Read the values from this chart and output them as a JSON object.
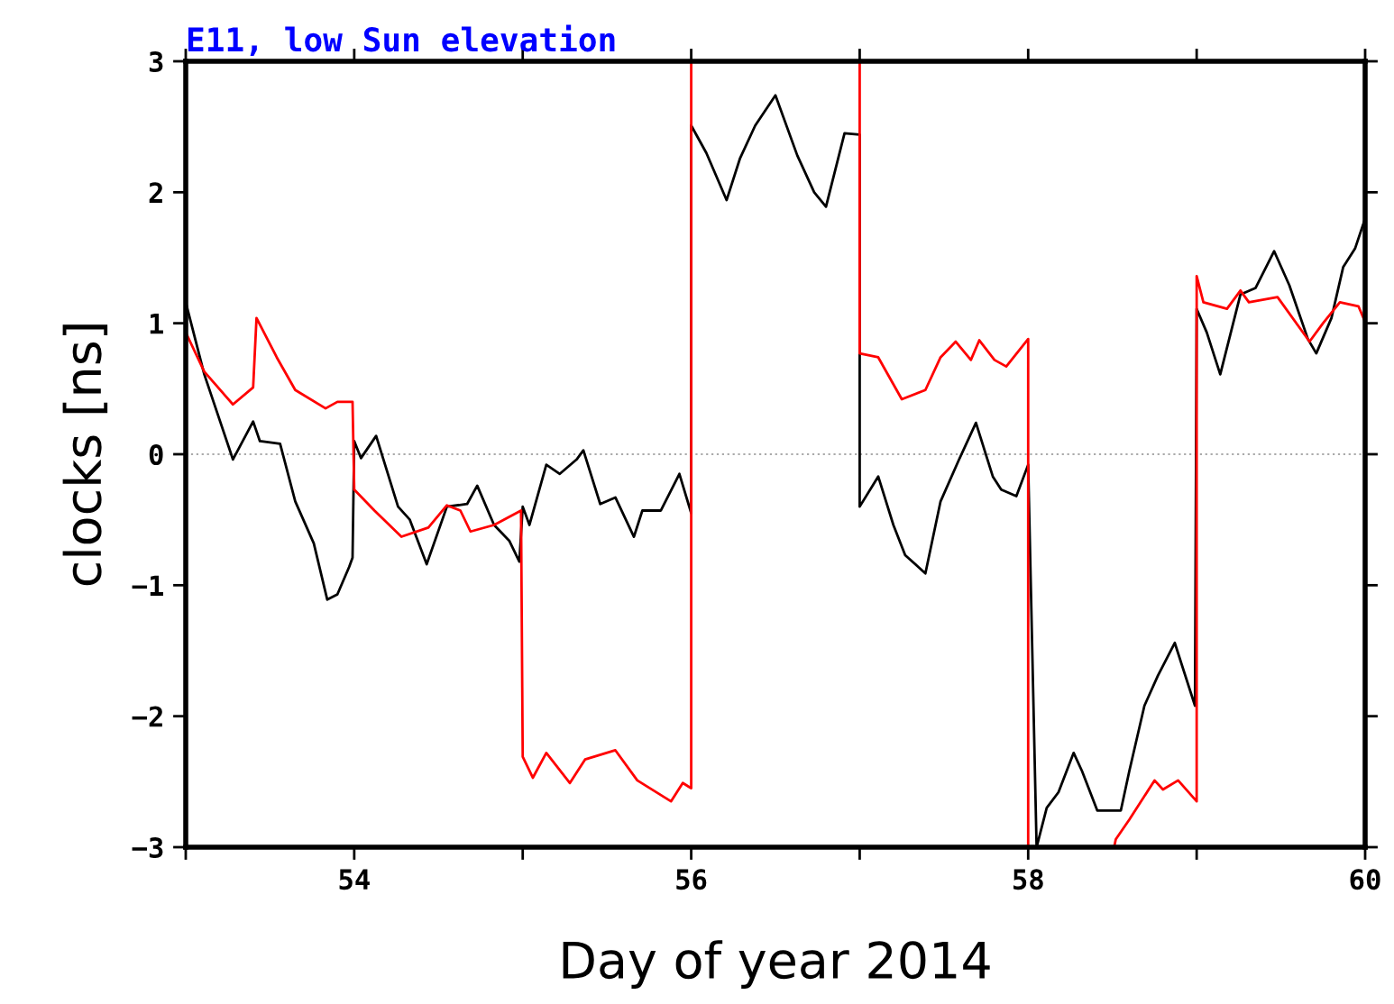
{
  "chart_data": {
    "type": "line",
    "title": "E11, low Sun elevation",
    "xlabel": "Day of year 2014",
    "ylabel": "clocks [ns]",
    "xlim": [
      53,
      60
    ],
    "ylim": [
      -3,
      3
    ],
    "xticks": [
      {
        "value": 53,
        "label": null
      },
      54,
      {
        "value": 55,
        "label": null
      },
      56,
      {
        "value": 57,
        "label": null
      },
      58,
      {
        "value": 59,
        "label": null
      },
      60
    ],
    "yticks": [
      {
        "value": -3,
        "label": "−3"
      },
      {
        "value": -2,
        "label": "−2"
      },
      {
        "value": -1,
        "label": "−1"
      },
      0,
      1,
      2,
      3
    ],
    "grid": false,
    "legend": false,
    "marker": "none",
    "line_style": "solid",
    "ref_lines": [
      {
        "axis": "y",
        "value": 0,
        "color": "#aaaaaa",
        "line_style": "dotted"
      }
    ],
    "series": [
      {
        "color": "#000000",
        "x": [
          53.0,
          53.11,
          53.28,
          53.4,
          53.44,
          53.56,
          53.65,
          53.76,
          53.84,
          53.9,
          53.97,
          53.99,
          54.0,
          54.04,
          54.13,
          54.26,
          54.33,
          54.43,
          54.55,
          54.67,
          54.73,
          54.83,
          54.92,
          54.98,
          55.0,
          55.04,
          55.14,
          55.22,
          55.32,
          55.36,
          55.46,
          55.55,
          55.66,
          55.71,
          55.82,
          55.93,
          56.0,
          56.0,
          56.09,
          56.21,
          56.29,
          56.38,
          56.5,
          56.63,
          56.73,
          56.8,
          56.91,
          57.0,
          57.0,
          57.11,
          57.2,
          57.27,
          57.39,
          57.48,
          57.59,
          57.69,
          57.79,
          57.84,
          57.93,
          58.0,
          58.05,
          58.11,
          58.18,
          58.27,
          58.32,
          58.41,
          58.55,
          58.6,
          58.69,
          58.77,
          58.87,
          58.99,
          59.0,
          59.06,
          59.14,
          59.26,
          59.35,
          59.46,
          59.55,
          59.66,
          59.71,
          59.8,
          59.87,
          59.94,
          60.0
        ],
        "values": [
          1.16,
          0.61,
          -0.04,
          0.25,
          0.1,
          0.08,
          -0.36,
          -0.68,
          -1.11,
          -1.07,
          -0.86,
          -0.79,
          0.1,
          -0.03,
          0.14,
          -0.4,
          -0.5,
          -0.84,
          -0.4,
          -0.38,
          -0.24,
          -0.54,
          -0.66,
          -0.82,
          -0.4,
          -0.54,
          -0.08,
          -0.15,
          -0.04,
          0.03,
          -0.38,
          -0.33,
          -0.63,
          -0.43,
          -0.43,
          -0.15,
          -0.45,
          2.51,
          2.3,
          1.94,
          2.26,
          2.51,
          2.74,
          2.28,
          2.0,
          1.89,
          2.45,
          2.44,
          -0.4,
          -0.17,
          -0.54,
          -0.77,
          -0.91,
          -0.36,
          -0.04,
          0.24,
          -0.17,
          -0.27,
          -0.32,
          -0.08,
          -3.0,
          -2.7,
          -2.58,
          -2.28,
          -2.42,
          -2.72,
          -2.72,
          -2.42,
          -1.92,
          -1.69,
          -1.44,
          -1.92,
          1.11,
          0.93,
          0.61,
          1.22,
          1.27,
          1.55,
          1.29,
          0.88,
          0.77,
          1.04,
          1.43,
          1.57,
          1.8
        ]
      },
      {
        "color": "#ff0000",
        "x": [
          53.0,
          53.11,
          53.28,
          53.4,
          53.42,
          53.54,
          53.65,
          53.83,
          53.9,
          53.99,
          54.0,
          54.12,
          54.28,
          54.44,
          54.55,
          54.63,
          54.69,
          54.83,
          54.99,
          55.0,
          55.06,
          55.14,
          55.28,
          55.37,
          55.55,
          55.68,
          55.88,
          55.95,
          56.0,
          56.0,
          56.5,
          57.0,
          57.0,
          57.11,
          57.25,
          57.39,
          57.48,
          57.57,
          57.66,
          57.71,
          57.8,
          57.87,
          58.0,
          58.0,
          58.25,
          58.51,
          58.52,
          58.6,
          58.75,
          58.8,
          58.89,
          59.0,
          59.0,
          59.04,
          59.18,
          59.26,
          59.31,
          59.48,
          59.67,
          59.75,
          59.85,
          59.96,
          60.0
        ],
        "values": [
          0.93,
          0.63,
          0.38,
          0.51,
          1.04,
          0.74,
          0.49,
          0.35,
          0.4,
          0.4,
          -0.27,
          -0.43,
          -0.63,
          -0.56,
          -0.39,
          -0.43,
          -0.59,
          -0.54,
          -0.43,
          -2.31,
          -2.47,
          -2.28,
          -2.51,
          -2.33,
          -2.26,
          -2.49,
          -2.65,
          -2.51,
          -2.55,
          3.0,
          null,
          3.0,
          0.77,
          0.74,
          0.42,
          0.49,
          0.74,
          0.86,
          0.72,
          0.87,
          0.72,
          0.67,
          0.88,
          -3.0,
          null,
          -3.0,
          -2.94,
          -2.79,
          -2.49,
          -2.56,
          -2.49,
          -2.65,
          1.36,
          1.16,
          1.11,
          1.25,
          1.16,
          1.2,
          0.86,
          1.0,
          1.16,
          1.13,
          1.01
        ]
      }
    ]
  }
}
